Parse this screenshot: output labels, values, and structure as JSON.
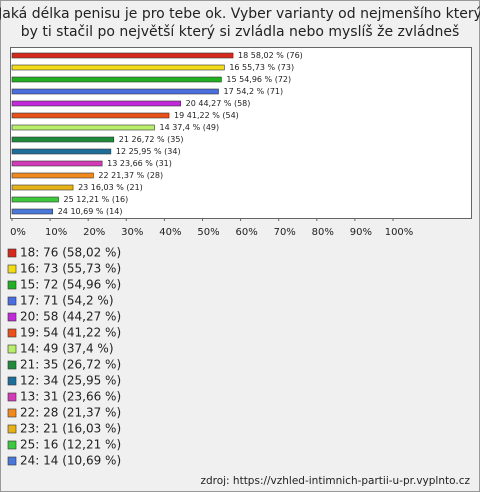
{
  "chart_data": {
    "type": "bar",
    "orientation": "horizontal",
    "title": "Jaká délka penisu je pro tebe ok. Vyber varianty od nejmenšího který",
    "subtitle": "by ti stačil po největší který si zvládla nebo myslíš že zvládneš",
    "categories": [
      "18",
      "16",
      "15",
      "17",
      "20",
      "19",
      "14",
      "21",
      "12",
      "13",
      "22",
      "23",
      "25",
      "24"
    ],
    "values": [
      58.02,
      55.73,
      54.96,
      54.2,
      44.27,
      41.22,
      37.4,
      26.72,
      25.95,
      23.66,
      21.37,
      16.03,
      12.21,
      10.69
    ],
    "counts": [
      76,
      73,
      72,
      71,
      58,
      54,
      49,
      35,
      34,
      31,
      28,
      21,
      16,
      14
    ],
    "value_labels": [
      "18 58,02 % (76)",
      "16 55,73 % (73)",
      "15 54,96 % (72)",
      "17 54,2 % (71)",
      "20 44,27 % (58)",
      "19 41,22 % (54)",
      "14 37,4 % (49)",
      "21 26,72 % (35)",
      "12 25,95 % (34)",
      "13 23,66 % (31)",
      "22 21,37 % (28)",
      "23 16,03 % (21)",
      "25 12,21 % (16)",
      "24 10,69 % (14)"
    ],
    "legend_labels": [
      "18: 76 (58,02 %)",
      "16: 73 (55,73 %)",
      "15: 72 (54,96 %)",
      "17: 71 (54,2 %)",
      "20: 58 (44,27 %)",
      "19: 54 (41,22 %)",
      "14: 49 (37,4 %)",
      "21: 35 (26,72 %)",
      "12: 34 (25,95 %)",
      "13: 31 (23,66 %)",
      "22: 28 (21,37 %)",
      "23: 21 (16,03 %)",
      "25: 16 (12,21 %)",
      "24: 14 (10,69 %)"
    ],
    "colors": [
      "#d42a1e",
      "#f2dc1a",
      "#22b022",
      "#4a6ee0",
      "#c02ad8",
      "#e8501a",
      "#b8ee6a",
      "#1e8a3a",
      "#1e6e9a",
      "#d23ab8",
      "#f08a1e",
      "#e6b21a",
      "#3ec83e",
      "#4a78d8"
    ],
    "xlim": [
      0,
      100
    ],
    "xticks": [
      {
        "value": 0,
        "label": "0%"
      },
      {
        "value": 10,
        "label": "10%"
      },
      {
        "value": 20,
        "label": "20%"
      },
      {
        "value": 30,
        "label": "30%"
      },
      {
        "value": 40,
        "label": "40%"
      },
      {
        "value": 50,
        "label": "50%"
      },
      {
        "value": 60,
        "label": "60%"
      },
      {
        "value": 70,
        "label": "70%"
      },
      {
        "value": 80,
        "label": "80%"
      },
      {
        "value": 90,
        "label": "90%"
      },
      {
        "value": 100,
        "label": "100%"
      }
    ],
    "source": "zdroj: https://vzhled-intimnich-partii-u-pr.vyplnto.cz"
  }
}
